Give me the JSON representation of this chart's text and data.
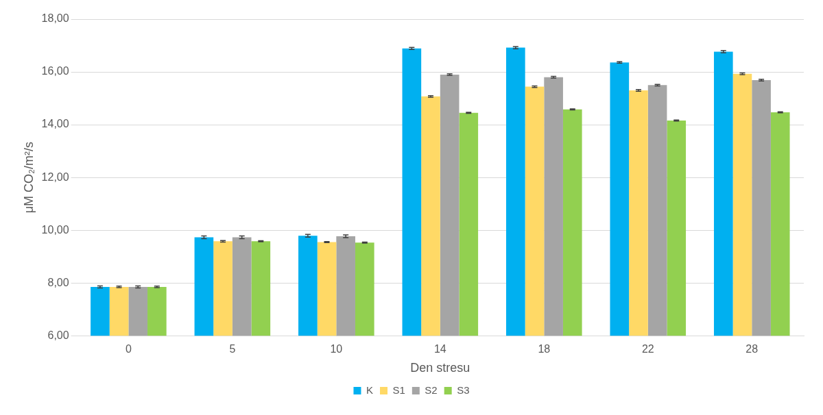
{
  "chart_data": {
    "type": "bar",
    "xlabel": "Den stresu",
    "ylabel": "μM CO₂/m²/s",
    "categories": [
      "0",
      "5",
      "10",
      "14",
      "18",
      "22",
      "28"
    ],
    "ylim": [
      6,
      18
    ],
    "yticks": [
      {
        "value": 6,
        "label": "6,00"
      },
      {
        "value": 8,
        "label": "8,00"
      },
      {
        "value": 10,
        "label": "10,00"
      },
      {
        "value": 12,
        "label": "12,00"
      },
      {
        "value": 14,
        "label": "14,00"
      },
      {
        "value": 16,
        "label": "16,00"
      },
      {
        "value": 18,
        "label": "18,00"
      }
    ],
    "grid": "y",
    "legend": "bottom",
    "series": [
      {
        "name": "K",
        "color": "#00b0f0",
        "values": [
          7.85,
          9.73,
          9.79,
          16.89,
          16.92,
          16.36,
          16.77
        ],
        "errors": [
          0.04,
          0.05,
          0.05,
          0.04,
          0.04,
          0.03,
          0.04
        ]
      },
      {
        "name": "S1",
        "color": "#ffd966",
        "values": [
          7.85,
          9.58,
          9.55,
          15.07,
          15.44,
          15.3,
          15.93
        ],
        "errors": [
          0.03,
          0.03,
          0.02,
          0.03,
          0.03,
          0.03,
          0.03
        ]
      },
      {
        "name": "S2",
        "color": "#a5a5a5",
        "values": [
          7.85,
          9.73,
          9.77,
          15.9,
          15.8,
          15.5,
          15.69
        ],
        "errors": [
          0.04,
          0.05,
          0.05,
          0.03,
          0.03,
          0.03,
          0.03
        ]
      },
      {
        "name": "S3",
        "color": "#92d050",
        "values": [
          7.85,
          9.58,
          9.53,
          14.45,
          14.58,
          14.16,
          14.47
        ],
        "errors": [
          0.03,
          0.02,
          0.02,
          0.02,
          0.02,
          0.02,
          0.02
        ]
      }
    ]
  }
}
